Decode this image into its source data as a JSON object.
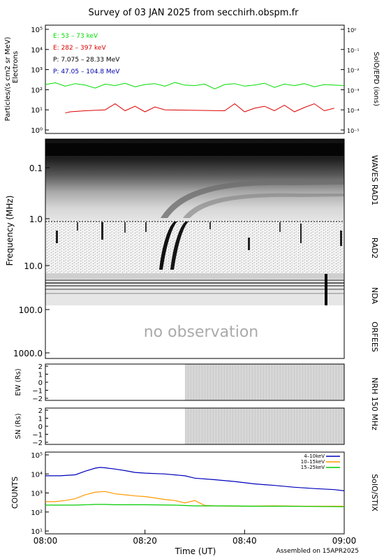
{
  "title": "Survey of 03 JAN 2025 from secchirh.obspm.fr",
  "x_axis": {
    "ticks": [
      "08:00",
      "08:20",
      "08:40",
      "09:00"
    ],
    "label": "Time (UT)",
    "assembled": "Assembled on 15APR2025"
  },
  "colors": {
    "e_low": "#00dd00",
    "e_high": "#dd0000",
    "p_low": "#000000",
    "p_high": "#0000aa",
    "stix_low": "#0000bb",
    "stix_mid": "#ff9900",
    "stix_high": "#00cc00"
  },
  "panels": {
    "epd": {
      "ylabel_left": "Particles/(s cm2 sr MeV)",
      "ylabel_left2": "Electrons",
      "ylabel_right": "SolO/EPD (ions)",
      "left_ticks": [
        "10⁰",
        "10¹",
        "10²",
        "10³",
        "10⁴",
        "10⁵"
      ],
      "right_ticks": [
        "10⁻⁵",
        "10⁻⁴",
        "10⁻³",
        "10⁻²",
        "10⁻¹",
        "10⁰"
      ],
      "legend": [
        "E: 53 – 73 keV",
        "E: 282 – 397 keV",
        "P: 7.075 – 28.33 MeV",
        "P: 47.05 – 104.8 MeV"
      ]
    },
    "radio": {
      "ylabel": "Frequency (MHz)",
      "ticks": [
        "0.1",
        "1.0",
        "10.0",
        "100.0",
        "1000.0"
      ],
      "right_labels": [
        "WAVES RAD1",
        "RAD2",
        "NDA",
        "ORFEES"
      ],
      "no_observation": "no observation"
    },
    "nrh_ew": {
      "ylabel": "EW (Rs)",
      "ticks": [
        "2",
        "1",
        "0",
        "−1",
        "−2"
      ]
    },
    "nrh_sn": {
      "ylabel": "SN (Rs)",
      "ticks": [
        "2",
        "1",
        "0",
        "−1",
        "−2"
      ]
    },
    "nrh_label": "NRH 150 MHz",
    "stix": {
      "ylabel": "COUNTS",
      "ylabel_right": "SolO/STIX",
      "ticks": [
        "10¹",
        "10²",
        "10³",
        "10⁴",
        "10⁵"
      ],
      "legend": [
        "4–10keV",
        "10–15keV",
        "15–25keV"
      ]
    }
  },
  "chart_data": [
    {
      "type": "line",
      "title": "SolO/EPD",
      "x_unit": "minutes after 08:00 UT",
      "ylim": [
        1,
        100000
      ],
      "y_scale": "log",
      "series": [
        {
          "name": "E: 53 – 73 keV",
          "x": [
            0,
            2,
            4,
            6,
            8,
            10,
            12,
            14,
            16,
            18,
            20,
            22,
            24,
            26,
            28,
            30,
            32,
            34,
            36,
            38,
            40,
            42,
            44,
            46,
            48,
            50,
            52,
            54,
            56,
            58,
            60
          ],
          "values": [
            180,
            220,
            150,
            200,
            170,
            120,
            190,
            160,
            210,
            140,
            180,
            200,
            150,
            230,
            170,
            160,
            190,
            110,
            180,
            200,
            150,
            170,
            210,
            130,
            190,
            160,
            200,
            140,
            180,
            170,
            160
          ]
        },
        {
          "name": "E: 282 – 397 keV",
          "x": [
            4,
            5,
            8,
            12,
            14,
            16,
            18,
            20,
            22,
            24,
            36,
            38,
            40,
            42,
            44,
            46,
            48,
            50,
            52,
            54,
            56,
            58
          ],
          "values": [
            7,
            8,
            9,
            10,
            20,
            9,
            15,
            8,
            14,
            10,
            9,
            20,
            8,
            12,
            15,
            9,
            17,
            8,
            13,
            20,
            9,
            12
          ]
        }
      ]
    },
    {
      "type": "line",
      "title": "SolO/STIX",
      "x_unit": "minutes after 08:00 UT",
      "ylim": [
        10,
        100000
      ],
      "y_scale": "log",
      "series": [
        {
          "name": "4–10keV",
          "x": [
            0,
            3,
            6,
            8,
            10,
            11,
            12,
            14,
            16,
            18,
            20,
            24,
            28,
            30,
            34,
            38,
            42,
            46,
            50,
            54,
            58,
            60
          ],
          "values": [
            8000,
            8000,
            9000,
            14000,
            20000,
            22000,
            21000,
            18000,
            15000,
            12000,
            11000,
            10000,
            8000,
            6000,
            5000,
            4000,
            3000,
            2500,
            2000,
            1700,
            1500,
            1300
          ]
        },
        {
          "name": "10–15keV",
          "x": [
            0,
            2,
            4,
            6,
            8,
            10,
            12,
            14,
            16,
            18,
            20,
            22,
            24,
            26,
            28,
            30,
            32,
            34,
            40,
            46,
            52,
            58,
            60
          ],
          "values": [
            350,
            350,
            400,
            500,
            800,
            1100,
            1200,
            900,
            800,
            700,
            650,
            550,
            450,
            400,
            300,
            400,
            220,
            210,
            200,
            210,
            200,
            200,
            200
          ]
        },
        {
          "name": "15–25keV",
          "x": [
            0,
            6,
            10,
            12,
            14,
            20,
            26,
            30,
            36,
            42,
            48,
            54,
            60
          ],
          "values": [
            230,
            230,
            250,
            250,
            240,
            240,
            230,
            210,
            210,
            200,
            200,
            195,
            190
          ]
        }
      ]
    }
  ]
}
